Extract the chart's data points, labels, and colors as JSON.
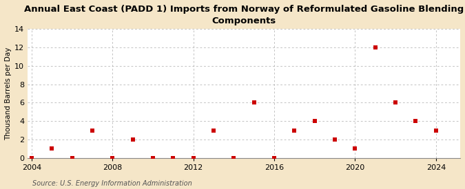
{
  "years": [
    2004,
    2005,
    2006,
    2007,
    2008,
    2009,
    2010,
    2011,
    2012,
    2013,
    2014,
    2015,
    2016,
    2017,
    2018,
    2019,
    2020,
    2021,
    2022,
    2023,
    2024
  ],
  "values": [
    0,
    1,
    0,
    3,
    0,
    2,
    0,
    0,
    0,
    3,
    0,
    6,
    0,
    3,
    4,
    2,
    1,
    12,
    6,
    4,
    3
  ],
  "title": "Annual East Coast (PADD 1) Imports from Norway of Reformulated Gasoline Blending\nComponents",
  "ylabel": "Thousand Barrels per Day",
  "source": "Source: U.S. Energy Information Administration",
  "marker_color": "#cc0000",
  "marker_size": 4,
  "fig_background": "#f5e6c8",
  "plot_background": "#ffffff",
  "grid_color": "#aaaaaa",
  "xlim": [
    2003.8,
    2025.2
  ],
  "ylim": [
    0,
    14
  ],
  "xticks": [
    2004,
    2008,
    2012,
    2016,
    2020,
    2024
  ],
  "yticks": [
    0,
    2,
    4,
    6,
    8,
    10,
    12,
    14
  ],
  "title_fontsize": 9.5,
  "label_fontsize": 7.5,
  "tick_fontsize": 8,
  "source_fontsize": 7
}
